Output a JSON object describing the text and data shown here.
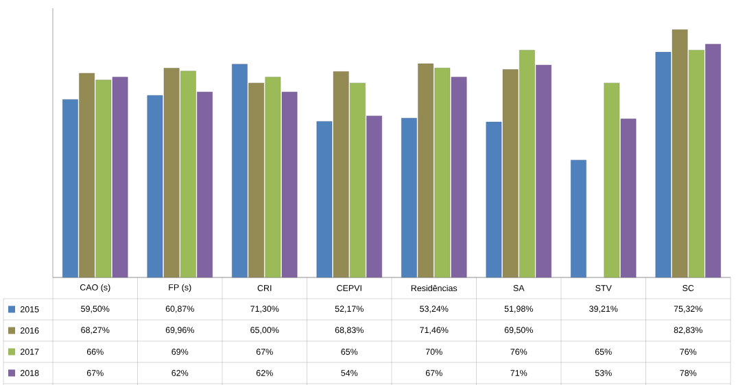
{
  "chart_data": {
    "type": "bar",
    "categories": [
      "CAO (s)",
      "FP (s)",
      "CRI",
      "CEPVI",
      "Residências",
      "SA",
      "STV",
      "SC"
    ],
    "ylim": [
      0,
      90
    ],
    "tick_labels": "x",
    "legend": "bottom",
    "series": [
      {
        "name": "2015",
        "color": "#4f81bd",
        "values": [
          59.5,
          60.87,
          71.3,
          52.17,
          53.24,
          51.98,
          39.21,
          75.32
        ],
        "value_labels": [
          "59,50%",
          "60,87%",
          "71,30%",
          "52,17%",
          "53,24%",
          "51,98%",
          "39,21%",
          "75,32%"
        ]
      },
      {
        "name": "2016",
        "color": "#948a54",
        "values": [
          68.27,
          69.96,
          65.0,
          68.83,
          71.46,
          69.5,
          null,
          82.83
        ],
        "value_labels": [
          "68,27%",
          "69,96%",
          "65,00%",
          "68,83%",
          "71,46%",
          "69,50%",
          null,
          "82,83%"
        ]
      },
      {
        "name": "2017",
        "color": "#9bbb59",
        "values": [
          66,
          69,
          67,
          65,
          70,
          76,
          65,
          76
        ],
        "value_labels": [
          "66%",
          "69%",
          "67%",
          "65%",
          "70%",
          "76%",
          "65%",
          "76%"
        ]
      },
      {
        "name": "2018",
        "color": "#8064a2",
        "values": [
          67,
          62,
          62,
          54,
          67,
          71,
          53,
          78
        ],
        "value_labels": [
          "67%",
          "62%",
          "62%",
          "54%",
          "67%",
          "71%",
          "53%",
          "78%"
        ]
      }
    ]
  }
}
